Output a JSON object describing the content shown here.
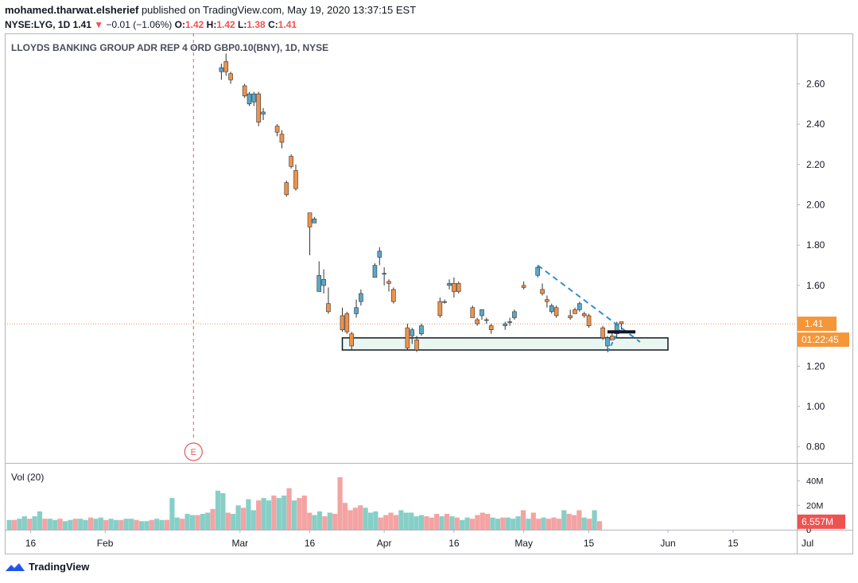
{
  "header": {
    "publisher": "mohamed.tharwat.elsherief",
    "published_text": "published on TradingView.com, May 19, 2020 13:37:15 EST",
    "symbol_line": "NYSE:LYG, 1D",
    "last": "1.41",
    "change_arrow": "▼",
    "change": "−0.01 (−1.06%)",
    "o_label": "O:",
    "o": "1.42",
    "h_label": "H:",
    "h": "1.42",
    "l_label": "L:",
    "l": "1.38",
    "c_label": "C:",
    "c": "1.41"
  },
  "footer": {
    "brand": "TradingView"
  },
  "colors": {
    "up": "#5ba7c9",
    "down": "#f0924b",
    "vol_up": "#86cfc7",
    "vol_down": "#f4a3a3",
    "price_line": "#f0924b",
    "last_badge": "#f59638",
    "vol_badge": "#ef5350",
    "trend": "#2f8fd1",
    "event": "#e55b5b",
    "grid": "#e0e3eb"
  },
  "chart_data": {
    "type": "candlestick",
    "title": "LLOYDS BANKING GROUP ADR REP 4 ORD GBP0.10(BNY), 1D, NYSE",
    "price_axis": {
      "ticks": [
        "2.60",
        "2.40",
        "2.20",
        "2.00",
        "1.80",
        "1.60",
        "1.40",
        "1.20",
        "1.00",
        "0.80"
      ],
      "range": [
        0.72,
        2.85
      ]
    },
    "time_axis": {
      "labels": [
        "16",
        "Feb",
        "Mar",
        "16",
        "Apr",
        "16",
        "May",
        "15",
        "Jun",
        "15",
        "Jul"
      ]
    },
    "last_price_label": "1.41",
    "countdown_label": "01:22:45",
    "event_marker": "E",
    "volume": {
      "label": "Vol (20)",
      "ticks": [
        "40M",
        "20M",
        "0"
      ],
      "range": [
        0,
        45
      ],
      "last_label": "6.557M",
      "values": [
        8,
        8,
        9,
        11,
        9,
        11,
        15,
        9,
        9,
        8,
        9,
        7,
        8,
        9,
        9,
        8,
        10,
        9,
        10,
        8,
        9,
        8,
        8,
        9,
        9,
        8,
        7,
        7,
        8,
        9,
        8,
        8,
        26,
        10,
        9,
        13,
        12,
        12,
        13,
        14,
        17,
        32,
        30,
        14,
        13,
        20,
        18,
        25,
        16,
        24,
        26,
        24,
        28,
        26,
        28,
        34,
        24,
        26,
        28,
        14,
        12,
        15,
        11,
        14,
        13,
        43,
        22,
        16,
        18,
        20,
        18,
        14,
        15,
        10,
        12,
        14,
        12,
        16,
        14,
        14,
        11,
        12,
        11,
        10,
        13,
        11,
        13,
        11,
        10,
        8,
        10,
        9,
        12,
        14,
        13,
        10,
        9,
        10,
        10,
        9,
        11,
        16,
        9,
        14,
        9,
        10,
        9,
        10,
        9,
        16,
        13,
        12,
        16,
        10,
        9,
        16,
        7
      ]
    },
    "candles": [
      {
        "date": "2020-02-26",
        "o": 2.66,
        "h": 2.7,
        "l": 2.62,
        "c": 2.68
      },
      {
        "date": "2020-02-27",
        "o": 2.71,
        "h": 2.75,
        "l": 2.64,
        "c": 2.66
      },
      {
        "date": "2020-02-28",
        "o": 2.65,
        "h": 2.66,
        "l": 2.6,
        "c": 2.62
      },
      {
        "date": "2020-03-02",
        "o": 2.59,
        "h": 2.6,
        "l": 2.53,
        "c": 2.54
      },
      {
        "date": "2020-03-03",
        "o": 2.5,
        "h": 2.56,
        "l": 2.49,
        "c": 2.55
      },
      {
        "date": "2020-03-04",
        "o": 2.51,
        "h": 2.56,
        "l": 2.49,
        "c": 2.55
      },
      {
        "date": "2020-03-05",
        "o": 2.55,
        "h": 2.56,
        "l": 2.39,
        "c": 2.41
      },
      {
        "date": "2020-03-06",
        "o": 2.45,
        "h": 2.48,
        "l": 2.42,
        "c": 2.46
      },
      {
        "date": "2020-03-09",
        "o": 2.39,
        "h": 2.4,
        "l": 2.34,
        "c": 2.36
      },
      {
        "date": "2020-03-10",
        "o": 2.35,
        "h": 2.37,
        "l": 2.28,
        "c": 2.31
      },
      {
        "date": "2020-03-11",
        "o": 2.11,
        "h": 2.12,
        "l": 2.04,
        "c": 2.05
      },
      {
        "date": "2020-03-12",
        "o": 2.24,
        "h": 2.25,
        "l": 2.18,
        "c": 2.19
      },
      {
        "date": "2020-03-13",
        "o": 2.17,
        "h": 2.2,
        "l": 2.07,
        "c": 2.08
      },
      {
        "date": "2020-03-16",
        "o": 1.96,
        "h": 1.96,
        "l": 1.75,
        "c": 1.89
      },
      {
        "date": "2020-03-17",
        "o": 1.91,
        "h": 1.94,
        "l": 1.91,
        "c": 1.93
      },
      {
        "date": "2020-03-18",
        "o": 1.57,
        "h": 1.72,
        "l": 1.57,
        "c": 1.65
      },
      {
        "date": "2020-03-19",
        "o": 1.6,
        "h": 1.68,
        "l": 1.56,
        "c": 1.63
      },
      {
        "date": "2020-03-20",
        "o": 1.51,
        "h": 1.59,
        "l": 1.46,
        "c": 1.47
      },
      {
        "date": "2020-03-23",
        "o": 1.45,
        "h": 1.49,
        "l": 1.37,
        "c": 1.38
      },
      {
        "date": "2020-03-24",
        "o": 1.46,
        "h": 1.47,
        "l": 1.36,
        "c": 1.37
      },
      {
        "date": "2020-03-25",
        "o": 1.36,
        "h": 1.37,
        "l": 1.28,
        "c": 1.3
      },
      {
        "date": "2020-03-26",
        "o": 1.46,
        "h": 1.53,
        "l": 1.44,
        "c": 1.49
      },
      {
        "date": "2020-03-27",
        "o": 1.52,
        "h": 1.58,
        "l": 1.5,
        "c": 1.56
      },
      {
        "date": "2020-03-30",
        "o": 1.64,
        "h": 1.71,
        "l": 1.64,
        "c": 1.7
      },
      {
        "date": "2020-03-31",
        "o": 1.74,
        "h": 1.79,
        "l": 1.7,
        "c": 1.77
      },
      {
        "date": "2020-04-01",
        "o": 1.66,
        "h": 1.69,
        "l": 1.6,
        "c": 1.66
      },
      {
        "date": "2020-04-02",
        "o": 1.62,
        "h": 1.63,
        "l": 1.57,
        "c": 1.61
      },
      {
        "date": "2020-04-03",
        "o": 1.58,
        "h": 1.59,
        "l": 1.51,
        "c": 1.52
      },
      {
        "date": "2020-04-06",
        "o": 1.39,
        "h": 1.41,
        "l": 1.28,
        "c": 1.29
      },
      {
        "date": "2020-04-07",
        "o": 1.35,
        "h": 1.39,
        "l": 1.31,
        "c": 1.38
      },
      {
        "date": "2020-04-08",
        "o": 1.33,
        "h": 1.35,
        "l": 1.27,
        "c": 1.28
      },
      {
        "date": "2020-04-09",
        "o": 1.36,
        "h": 1.41,
        "l": 1.35,
        "c": 1.4
      },
      {
        "date": "2020-04-13",
        "o": 1.52,
        "h": 1.54,
        "l": 1.44,
        "c": 1.45
      },
      {
        "date": "2020-04-14",
        "o": 1.52,
        "h": 1.53,
        "l": 1.51,
        "c": 1.52
      },
      {
        "date": "2020-04-15",
        "o": 1.6,
        "h": 1.63,
        "l": 1.58,
        "c": 1.61
      },
      {
        "date": "2020-04-16",
        "o": 1.61,
        "h": 1.64,
        "l": 1.54,
        "c": 1.57
      },
      {
        "date": "2020-04-17",
        "o": 1.61,
        "h": 1.62,
        "l": 1.56,
        "c": 1.57
      },
      {
        "date": "2020-04-20",
        "o": 1.49,
        "h": 1.5,
        "l": 1.44,
        "c": 1.44
      },
      {
        "date": "2020-04-21",
        "o": 1.43,
        "h": 1.44,
        "l": 1.4,
        "c": 1.41
      },
      {
        "date": "2020-04-22",
        "o": 1.45,
        "h": 1.48,
        "l": 1.43,
        "c": 1.48
      },
      {
        "date": "2020-04-23",
        "o": 1.43,
        "h": 1.44,
        "l": 1.41,
        "c": 1.43
      },
      {
        "date": "2020-04-24",
        "o": 1.4,
        "h": 1.41,
        "l": 1.36,
        "c": 1.38
      },
      {
        "date": "2020-04-27",
        "o": 1.4,
        "h": 1.42,
        "l": 1.38,
        "c": 1.41
      },
      {
        "date": "2020-04-28",
        "o": 1.42,
        "h": 1.44,
        "l": 1.4,
        "c": 1.42
      },
      {
        "date": "2020-04-29",
        "o": 1.44,
        "h": 1.48,
        "l": 1.43,
        "c": 1.47
      },
      {
        "date": "2020-05-01",
        "o": 1.6,
        "h": 1.62,
        "l": 1.58,
        "c": 1.59
      },
      {
        "date": "2020-05-04",
        "o": 1.65,
        "h": 1.7,
        "l": 1.64,
        "c": 1.69
      },
      {
        "date": "2020-05-05",
        "o": 1.58,
        "h": 1.61,
        "l": 1.55,
        "c": 1.56
      },
      {
        "date": "2020-05-06",
        "o": 1.53,
        "h": 1.55,
        "l": 1.49,
        "c": 1.52
      },
      {
        "date": "2020-05-07",
        "o": 1.47,
        "h": 1.51,
        "l": 1.46,
        "c": 1.5
      },
      {
        "date": "2020-05-08",
        "o": 1.49,
        "h": 1.5,
        "l": 1.44,
        "c": 1.45
      },
      {
        "date": "2020-05-11",
        "o": 1.45,
        "h": 1.48,
        "l": 1.43,
        "c": 1.44
      },
      {
        "date": "2020-05-12",
        "o": 1.48,
        "h": 1.49,
        "l": 1.46,
        "c": 1.46
      },
      {
        "date": "2020-05-13",
        "o": 1.48,
        "h": 1.52,
        "l": 1.47,
        "c": 1.51
      },
      {
        "date": "2020-05-14",
        "o": 1.46,
        "h": 1.47,
        "l": 1.44,
        "c": 1.45
      },
      {
        "date": "2020-05-15",
        "o": 1.45,
        "h": 1.46,
        "l": 1.39,
        "c": 1.4
      },
      {
        "date": "2020-05-18",
        "o": 1.39,
        "h": 1.4,
        "l": 1.33,
        "c": 1.34
      },
      {
        "date": "2020-05-19",
        "o": 1.3,
        "h": 1.35,
        "l": 1.27,
        "c": 1.34
      },
      {
        "date": "2020-05-20",
        "o": 1.35,
        "h": 1.37,
        "l": 1.33,
        "c": 1.33
      },
      {
        "date": "2020-05-21",
        "o": 1.36,
        "h": 1.42,
        "l": 1.34,
        "c": 1.41
      },
      {
        "date": "2020-05-22",
        "o": 1.42,
        "h": 1.42,
        "l": 1.38,
        "c": 1.41
      }
    ],
    "annotations": {
      "support_zone": {
        "from": "2020-03-23",
        "to": "2020-06-01",
        "low": 1.28,
        "high": 1.34
      },
      "trend_line": {
        "from": "2020-05-04",
        "from_price": 1.7,
        "to": "2020-05-26",
        "to_price": 1.32
      },
      "counter_line": {
        "from": "2020-05-19",
        "from_price": 1.27,
        "to": "2020-05-22",
        "to_price": 1.4
      },
      "black_bar": {
        "from": "2020-05-19",
        "to": "2020-05-25",
        "price": 1.37
      },
      "event_line": "2020-02-20"
    }
  }
}
